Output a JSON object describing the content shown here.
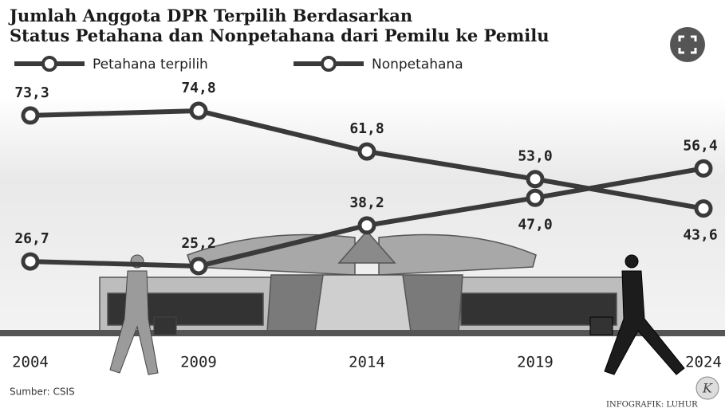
{
  "chart_data": {
    "type": "line",
    "title": "Jumlah Anggota DPR Terpilih Berdasarkan",
    "subtitle": "Status Petahana dan Nonpetahana dari Pemilu ke Pemilu",
    "categories": [
      "2004",
      "2009",
      "2014",
      "2019",
      "2024"
    ],
    "series": [
      {
        "name": "Petahana terpilih",
        "color": "#3a3a3a",
        "values": [
          73.3,
          74.8,
          61.8,
          53.0,
          43.6
        ],
        "value_labels": [
          "73,3",
          "74,8",
          "61,8",
          "53,0",
          "43,6"
        ]
      },
      {
        "name": "Nonpetahana",
        "color": "#3a3a3a",
        "values": [
          26.7,
          25.2,
          38.2,
          47.0,
          56.4
        ],
        "value_labels": [
          "26,7",
          "25,2",
          "38,2",
          "47,0",
          "56,4"
        ]
      }
    ],
    "ylim": [
      0,
      100
    ],
    "source": "Sumber: CSIS",
    "credit": "INFOGRAFIK: LUHUR",
    "logo": "K"
  }
}
